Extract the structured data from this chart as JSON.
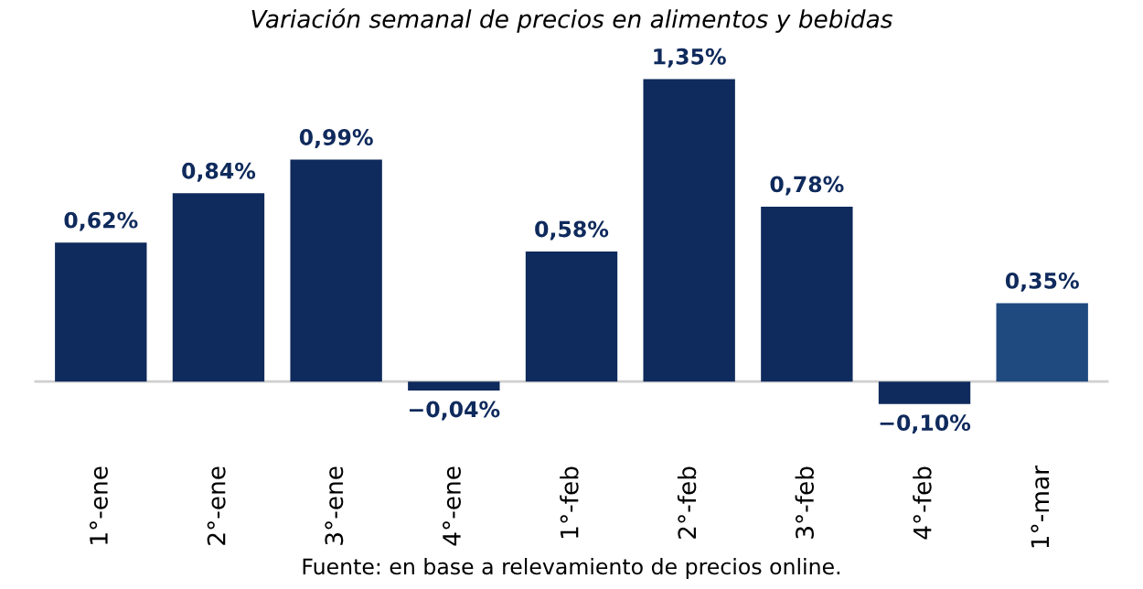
{
  "chart_data": {
    "type": "bar",
    "title": "Variación semanal de precios en alimentos y bebidas",
    "categories": [
      "1°-ene",
      "2°-ene",
      "3°-ene",
      "4°-ene",
      "1°-feb",
      "2°-feb",
      "3°-feb",
      "4°-feb",
      "1°-mar"
    ],
    "values": [
      0.62,
      0.84,
      0.99,
      -0.04,
      0.58,
      1.35,
      0.78,
      -0.1,
      0.35
    ],
    "colors": [
      "#0f2a5c",
      "#0f2a5c",
      "#0f2a5c",
      "#0f2a5c",
      "#0f2a5c",
      "#0f2a5c",
      "#0f2a5c",
      "#0f2a5c",
      "#1f4a80"
    ],
    "value_labels": [
      "0,62%",
      "0,84%",
      "0,99%",
      "−0,04%",
      "0,58%",
      "1,35%",
      "0,78%",
      "−0,10%",
      "0,35%"
    ],
    "grid": false,
    "legend": false,
    "annotations": [
      "Fuente: en base a relevamiento de precios online."
    ]
  }
}
